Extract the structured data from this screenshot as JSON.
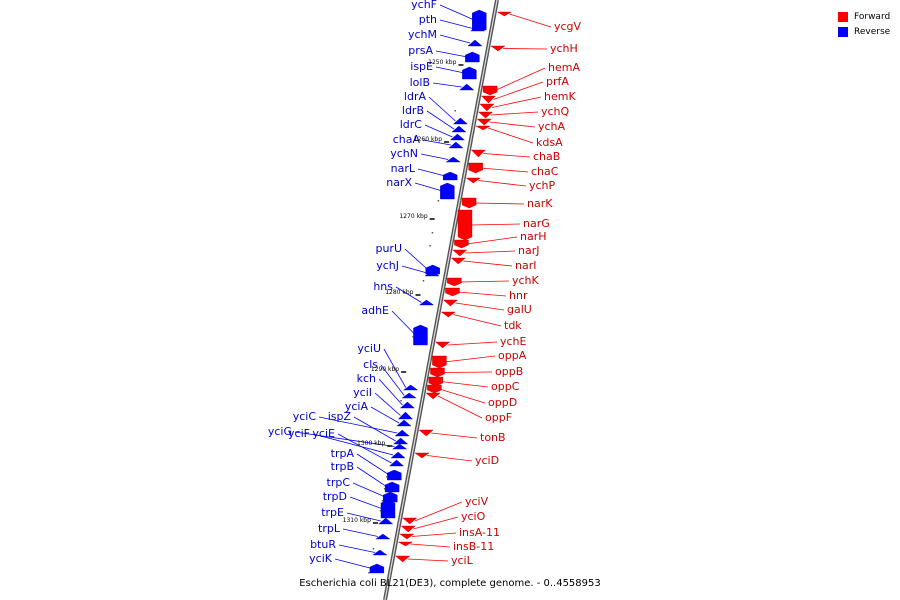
{
  "legend": {
    "forward_label": "Forward",
    "reverse_label": "Reverse",
    "forward_color": "#ff0000",
    "reverse_color": "#0000ff"
  },
  "caption": "Escherichia coli BL21(DE3), complete genome. - 0..4558953",
  "ticks": [
    "1250 kbp",
    "1260 kbp",
    "1270 kbp",
    "1280 kbp",
    "1290 kbp",
    "1300 kbp",
    "1310 kbp"
  ],
  "reverse_genes": [
    "ychF",
    "pth",
    "ychM",
    "prsA",
    "ispE",
    "lolB",
    "ldrA",
    "ldrB",
    "ldrC",
    "chaA",
    "ychN",
    "narL",
    "narX",
    "purU",
    "ychJ",
    "hns",
    "adhE",
    "yciU",
    "cls",
    "kch",
    "yciI",
    "yciA",
    "yciC",
    "ispZ",
    "yciG",
    "yciF",
    "yciE",
    "trpA",
    "trpB",
    "trpC",
    "trpD",
    "trpE",
    "trpL",
    "btuR",
    "yciK"
  ],
  "forward_genes": [
    "ycgV",
    "ychH",
    "hemA",
    "prfA",
    "hemK",
    "ychQ",
    "ychA",
    "kdsA",
    "chaB",
    "chaC",
    "ychP",
    "narK",
    "narG",
    "narH",
    "narJ",
    "narI",
    "ychK",
    "hnr",
    "galU",
    "tdk",
    "ychE",
    "oppA",
    "oppB",
    "oppC",
    "oppD",
    "oppF",
    "tonB",
    "yciD",
    "yciV",
    "yciO",
    "insA-11",
    "insB-11",
    "yciL"
  ]
}
